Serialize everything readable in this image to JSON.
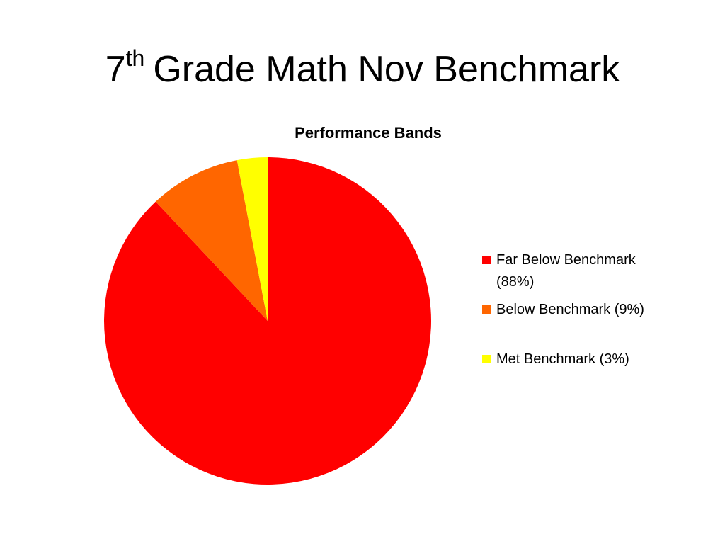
{
  "slide": {
    "title": {
      "base": "7",
      "superscript": "th",
      "rest": "Grade Math Nov Benchmark"
    }
  },
  "chart_data": {
    "type": "pie",
    "title": "Performance Bands",
    "categories": [
      "Far Below Benchmark (88%)",
      "Below Benchmark (9%)",
      "Met Benchmark (3%)"
    ],
    "values": [
      88,
      9,
      3
    ],
    "colors": [
      "#ff0000",
      "#ff6600",
      "#ffff00"
    ],
    "legend": "right"
  }
}
